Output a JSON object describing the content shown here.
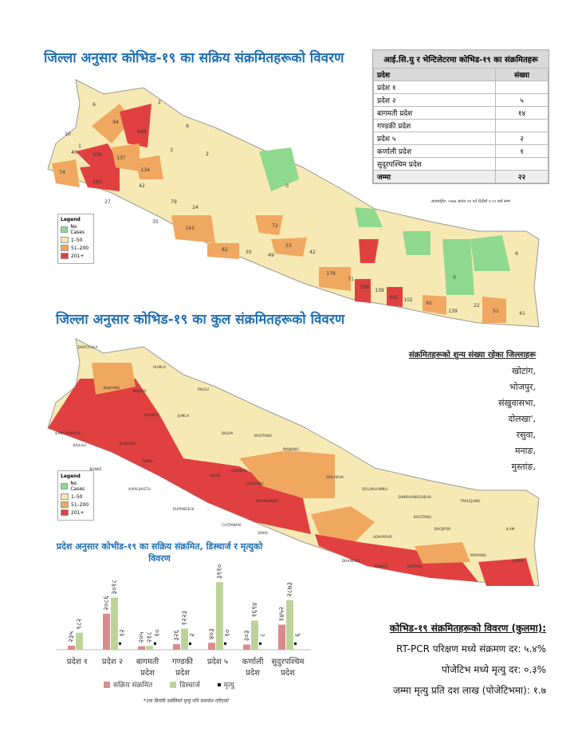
{
  "map1": {
    "title": "जिल्ला अनुसार कोभिड-१९ का सक्रिय संक्रमितहरूको विवरण",
    "legend": {
      "title": "Legend",
      "items": [
        "No Cases",
        "1–50",
        "51–200",
        "201+"
      ]
    },
    "labels": [
      6,
      2,
      10,
      94,
      448,
      1,
      6,
      3,
      2,
      40,
      309,
      137,
      134,
      74,
      583,
      42,
      27,
      79,
      24,
      143,
      35,
      72,
      62,
      35,
      49,
      53,
      42,
      179,
      71,
      339,
      139,
      491,
      102,
      92,
      139,
      22,
      51,
      41,
      6,
      0,
      0
    ]
  },
  "icu_table": {
    "title": "आई.सि.यु र भेन्टिलेटरमा कोभिड-१९ का संक्रमितहरू",
    "headers": [
      "प्रदेश",
      "संख्या"
    ],
    "rows": [
      [
        "प्रदेश १",
        null
      ],
      [
        "प्रदेश २",
        "५"
      ],
      [
        "बागमती प्रदेश",
        "१४"
      ],
      [
        "गण्डकी प्रदेश",
        null
      ],
      [
        "प्रदेश ५",
        "२"
      ],
      [
        "कर्णाली प्रदेश",
        "१"
      ],
      [
        "सुदूरपश्चिम प्रदेश",
        null
      ],
      [
        "जम्मा",
        "२२"
      ]
    ],
    "note": "आधारहित: २०७७ साउन १४ गते दिउँसो १:०० बजे सम्म"
  },
  "map2": {
    "title": "जिल्ला अनुसार कोभिड-१९ का कुल संक्रमितहरूको विवरण",
    "legend": {
      "title": "Legend",
      "items": [
        "No Cases",
        "1–50",
        "51–200",
        "201+"
      ]
    },
    "labels": [
      "DARCHULA",
      "HUMLA",
      "BAJHANG",
      "BAJURA",
      "KALIKOT",
      "JUMLA",
      "DOLPA",
      "MUGU",
      "MUSTANG",
      "MANANG",
      "GORKHA",
      "DHADING",
      "KATHMANDU",
      "DOLAKHA",
      "SOLUKHUMBU",
      "SANKHUWASABHA",
      "TAPLEJUNG",
      "ILAM",
      "JHAPA",
      "MORANG",
      "SAPTARI",
      "SIRAHA",
      "DHANUSA",
      "BARA",
      "CHITAWAN",
      "RUPANDEHI",
      "KAPILBASTU",
      "DANG",
      "BANKE",
      "KAILALI",
      "KANCHANPUR",
      "SURKHET",
      "KASKI",
      "BHOJPUR",
      "KHOTANG",
      "UDAYAPUR"
    ],
    "zero_districts": {
      "title": "संक्रमितहरूको शुन्य संख्या रहेका जिल्लाहरू",
      "items": [
        "खोटांग,",
        "भोजपुर,",
        "संखुवासभा,",
        "दोलखा',",
        "रसुवा,",
        "मनाङ,",
        "मुस्तांङ,"
      ]
    }
  },
  "chart_data": {
    "type": "bar",
    "title": "प्रदेश अनुसार कोभीड-१९ का सक्रिय संक्रमित, डिस्चार्ज र मृत्युको विवरण",
    "categories": [
      "प्रदेश १",
      "प्रदेश २",
      "बागमती प्रदेश",
      "गण्डकी प्रदेश",
      "प्रदेश ५",
      "कर्णाली प्रदेश",
      "सुदुरपश्चिम प्रदेश"
    ],
    "ylim": [
      0,
      6000
    ],
    "series": [
      {
        "name": "सक्रिय संक्रमित",
        "color": "#d98c8c",
        "values": [
          235,
          2086,
          205,
          326,
          403,
          303,
          1452
        ],
        "value_labels": [
          "२३५",
          "२०८६",
          "२०५",
          "३२६",
          "४०३",
          "३०३",
          "१४५२"
        ]
      },
      {
        "name": "डिस्चार्ज",
        "color": "#bcd49a",
        "values": [
          982,
          3018,
          218,
          1223,
          3910,
          1694,
          2873
        ],
        "value_labels": [
          "९८२",
          "३०१८",
          "२१८",
          "१२२३",
          "३९१०",
          "१६९४",
          "२८७३"
        ]
      },
      {
        "name": "मृत्यु",
        "color": "#000000",
        "values": [
          null,
          12,
          10,
          2,
          10,
          8,
          6
        ],
        "value_labels": [
          null,
          "१२",
          "१०",
          "२",
          "१०",
          "८",
          "६"
        ]
      }
    ]
  },
  "stats": {
    "title": "कोभिड-१९ संक्रमितहरूको विवरण (कुलमा):",
    "lines": [
      "RT-PCR परिक्षण मध्ये संक्रमण दर: ५.४%",
      "पोजेटिभ मध्ये मृत्यु दर: ०.३%",
      "जम्मा मृत्यु प्रति दश लाख (पोजेटिभमा): १.७"
    ]
  },
  "footnote": "*एक बिरामि नर्सलिको मृत्यु पनि समावेश गरिएको"
}
